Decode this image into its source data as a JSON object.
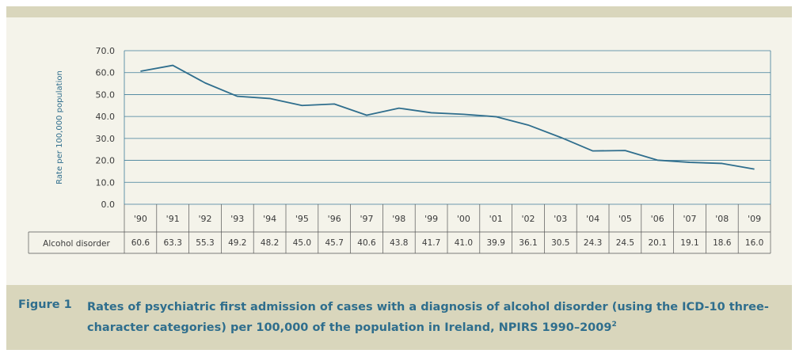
{
  "chart_data": {
    "type": "line",
    "title": "",
    "ylabel": "Rate per 100,000 population",
    "xlabel": "",
    "ylim": [
      0,
      70
    ],
    "yticks": [
      "0.0",
      "10.0",
      "20.0",
      "30.0",
      "40.0",
      "50.0",
      "60.0",
      "70.0"
    ],
    "categories": [
      "'90",
      "'91",
      "'92",
      "'93",
      "'94",
      "'95",
      "'96",
      "'97",
      "'98",
      "'99",
      "'00",
      "'01",
      "'02",
      "'03",
      "'04",
      "'05",
      "'06",
      "'07",
      "'08",
      "'09"
    ],
    "series": [
      {
        "name": "Alcohol disorder",
        "values": [
          60.6,
          63.3,
          55.3,
          49.2,
          48.2,
          45.0,
          45.7,
          40.6,
          43.8,
          41.7,
          41.0,
          39.9,
          36.1,
          30.5,
          24.3,
          24.5,
          20.1,
          19.1,
          18.6,
          16.0
        ],
        "labels": [
          "60.6",
          "63.3",
          "55.3",
          "49.2",
          "48.2",
          "45.0",
          "45.7",
          "40.6",
          "43.8",
          "41.7",
          "41.0",
          "39.9",
          "36.1",
          "30.5",
          "24.3",
          "24.5",
          "20.1",
          "19.1",
          "18.6",
          "16.0"
        ],
        "color": "#2f6e8d"
      }
    ],
    "grid": true
  },
  "colors": {
    "accent": "#2f6e8d",
    "band": "#d9d6bc",
    "panel": "#f4f3ea"
  },
  "caption": {
    "label": "Figure 1",
    "text": "Rates of psychiatric first admission of cases with a diagnosis of alcohol disorder (using the ICD-10 three-character categories) per 100,000 of the population in Ireland, NPIRS 1990–2009",
    "superscript": "2"
  }
}
